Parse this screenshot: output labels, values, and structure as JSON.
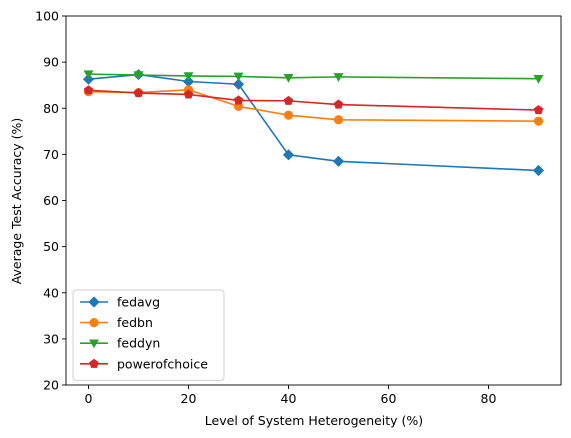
{
  "chart_data": {
    "type": "line",
    "title": "",
    "xlabel": "Level of System Heterogeneity (%)",
    "ylabel": "Average Test Accuracy (%)",
    "xlim": [
      -4.5,
      94.5
    ],
    "ylim": [
      20,
      100
    ],
    "xticks": [
      0,
      20,
      40,
      60,
      80
    ],
    "yticks": [
      20,
      30,
      40,
      50,
      60,
      70,
      80,
      90,
      100
    ],
    "x": [
      0,
      10,
      20,
      30,
      40,
      50,
      90
    ],
    "grid": false,
    "legend_position": "lower-left",
    "series": [
      {
        "name": "fedavg",
        "color": "#1f77b4",
        "marker": "diamond",
        "values": [
          86.3,
          87.3,
          85.8,
          85.2,
          69.9,
          68.5,
          66.5
        ]
      },
      {
        "name": "fedbn",
        "color": "#ff7f0e",
        "marker": "circle",
        "values": [
          83.6,
          83.4,
          84.0,
          80.4,
          78.5,
          77.5,
          77.2
        ]
      },
      {
        "name": "feddyn",
        "color": "#2ca02c",
        "marker": "triangle-down",
        "values": [
          87.4,
          87.2,
          87.0,
          86.9,
          86.6,
          86.8,
          86.4
        ]
      },
      {
        "name": "powerofchoice",
        "color": "#d62728",
        "marker": "pentagon",
        "values": [
          83.9,
          83.3,
          83.0,
          81.7,
          81.6,
          80.8,
          79.6
        ]
      }
    ]
  }
}
